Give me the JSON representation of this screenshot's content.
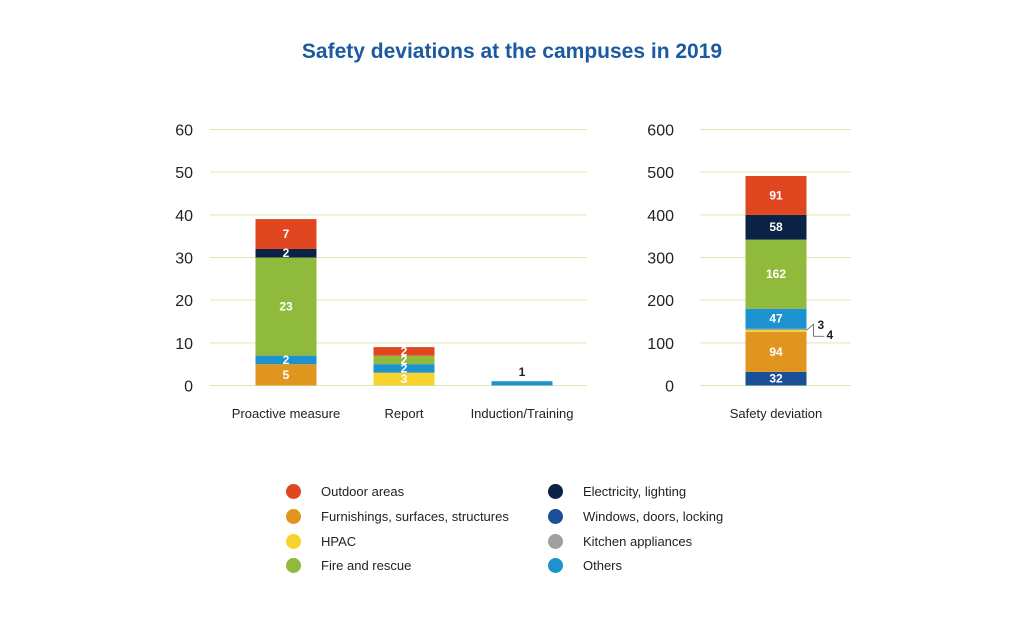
{
  "chart_data": {
    "title": "Safety deviations at the campuses in 2019",
    "legend": [
      {
        "label": "Outdoor areas",
        "color": "#e0461f"
      },
      {
        "label": "Furnishings, surfaces, structures",
        "color": "#e0951f"
      },
      {
        "label": "HPAC",
        "color": "#f6d32d"
      },
      {
        "label": "Fire and rescue",
        "color": "#8fba3b"
      },
      {
        "label": "Electricity, lighting",
        "color": "#0b2145"
      },
      {
        "label": "Windows, doors, locking",
        "color": "#1b4f98"
      },
      {
        "label": "Kitchen appliances",
        "color": "#a0a0a0"
      },
      {
        "label": "Others",
        "color": "#1d92cf"
      }
    ],
    "charts": [
      {
        "type": "bar",
        "stacked": true,
        "categories": [
          "Proactive measure",
          "Report",
          "Induction/Training"
        ],
        "ylim": [
          0,
          60
        ],
        "yticks": [
          0,
          10,
          20,
          30,
          40,
          50,
          60
        ],
        "grid": true,
        "series": [
          {
            "name": "Windows, doors, locking",
            "values": [
              0,
              0,
              0
            ],
            "labels": [
              "",
              "",
              ""
            ]
          },
          {
            "name": "Furnishings, surfaces, structures",
            "values": [
              5,
              0,
              0
            ],
            "labels": [
              "5",
              "",
              ""
            ]
          },
          {
            "name": "HPAC",
            "values": [
              0,
              3,
              0
            ],
            "labels": [
              "",
              "3",
              ""
            ]
          },
          {
            "name": "Kitchen appliances",
            "values": [
              0,
              0,
              0
            ],
            "labels": [
              "",
              "",
              ""
            ]
          },
          {
            "name": "Others",
            "values": [
              2,
              2,
              1
            ],
            "labels": [
              "2",
              "2",
              "1"
            ]
          },
          {
            "name": "Fire and rescue",
            "values": [
              23,
              2,
              0
            ],
            "labels": [
              "23",
              "2",
              ""
            ]
          },
          {
            "name": "Electricity, lighting",
            "values": [
              2,
              0,
              0
            ],
            "labels": [
              "2",
              "",
              ""
            ]
          },
          {
            "name": "Outdoor areas",
            "values": [
              7,
              2,
              0
            ],
            "labels": [
              "7",
              "2",
              ""
            ]
          }
        ]
      },
      {
        "type": "bar",
        "stacked": true,
        "categories": [
          "Safety deviation"
        ],
        "ylim": [
          0,
          600
        ],
        "yticks": [
          0,
          100,
          200,
          300,
          400,
          500,
          600
        ],
        "grid": true,
        "series": [
          {
            "name": "Windows, doors, locking",
            "values": [
              32
            ],
            "labels": [
              "32"
            ]
          },
          {
            "name": "Furnishings, surfaces, structures",
            "values": [
              94
            ],
            "labels": [
              "94"
            ]
          },
          {
            "name": "HPAC",
            "values": [
              4
            ],
            "labels": [
              "4"
            ]
          },
          {
            "name": "Kitchen appliances",
            "values": [
              3
            ],
            "labels": [
              "3"
            ]
          },
          {
            "name": "Others",
            "values": [
              47
            ],
            "labels": [
              "47"
            ]
          },
          {
            "name": "Fire and rescue",
            "values": [
              162
            ],
            "labels": [
              "162"
            ]
          },
          {
            "name": "Electricity, lighting",
            "values": [
              58
            ],
            "labels": [
              "58"
            ]
          },
          {
            "name": "Outdoor areas",
            "values": [
              91
            ],
            "labels": [
              "91"
            ]
          }
        ]
      }
    ]
  }
}
